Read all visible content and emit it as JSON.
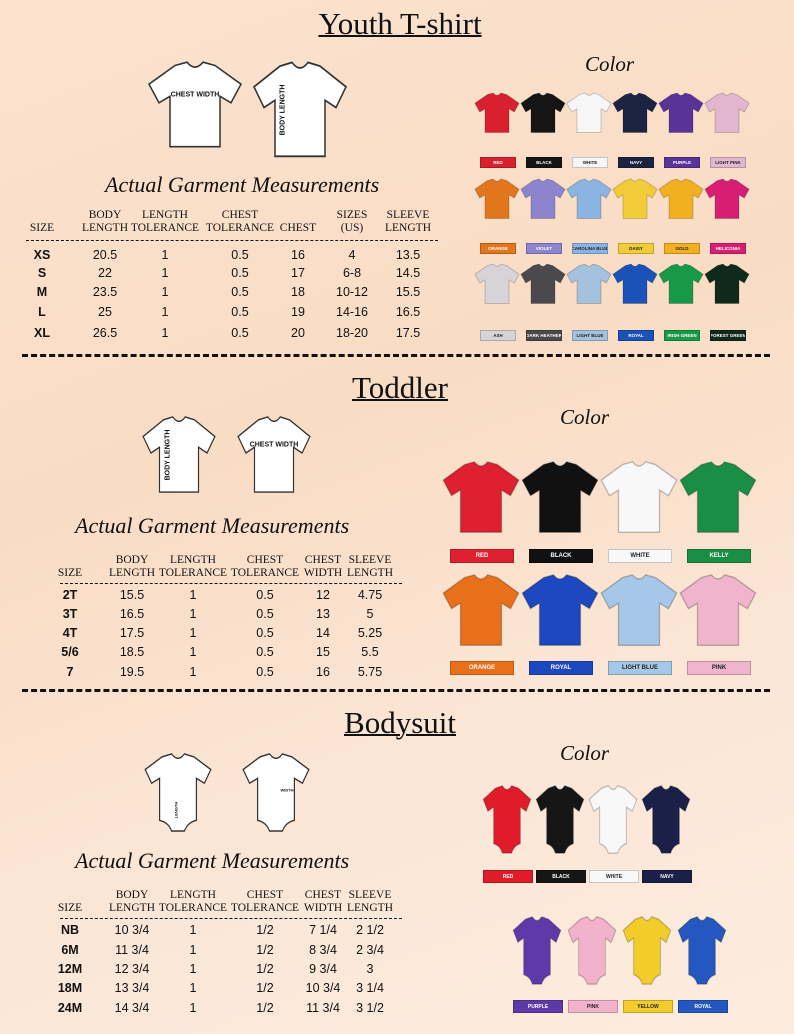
{
  "sections": [
    {
      "title": "Youth T-shirt",
      "diagram_labels": [
        "CHEST WIDTH",
        "BODY LENGTH"
      ],
      "measurements_heading": "Actual Garment Measurements",
      "color_heading": "Color",
      "table": {
        "headers": [
          "SIZE",
          "BODY LENGTH",
          "LENGTH TOLERANCE",
          "CHEST TOLERANCE",
          "CHEST",
          "SIZES (US)",
          "SLEEVE LENGTH"
        ],
        "rows": [
          [
            "XS",
            "20.5",
            "1",
            "0.5",
            "16",
            "4",
            "13.5"
          ],
          [
            "S",
            "22",
            "1",
            "0.5",
            "17",
            "6-8",
            "14.5"
          ],
          [
            "M",
            "23.5",
            "1",
            "0.5",
            "18",
            "10-12",
            "15.5"
          ],
          [
            "L",
            "25",
            "1",
            "0.5",
            "19",
            "14-16",
            "16.5"
          ],
          [
            "XL",
            "26.5",
            "1",
            "0.5",
            "20",
            "18-20",
            "17.5"
          ]
        ]
      },
      "colors": [
        {
          "name": "RED",
          "color": "#d8202e"
        },
        {
          "name": "BLACK",
          "color": "#151515"
        },
        {
          "name": "WHITE",
          "color": "#f6f6f6"
        },
        {
          "name": "NAVY",
          "color": "#1c2340"
        },
        {
          "name": "PURPLE",
          "color": "#5a3398"
        },
        {
          "name": "LIGHT PINK",
          "color": "#e2b6cf"
        },
        {
          "name": "ORANGE",
          "color": "#e2761c"
        },
        {
          "name": "VIOLET",
          "color": "#8c84cc"
        },
        {
          "name": "CAROLINA BLUE",
          "color": "#8cb4e2"
        },
        {
          "name": "DAISY",
          "color": "#f2cc38"
        },
        {
          "name": "GOLD",
          "color": "#f0b020"
        },
        {
          "name": "HELICONIA",
          "color": "#d81e74"
        },
        {
          "name": "ASH",
          "color": "#d6d4d8"
        },
        {
          "name": "DARK HEATHER",
          "color": "#4a4a4e"
        },
        {
          "name": "LIGHT BLUE",
          "color": "#a4c2de"
        },
        {
          "name": "ROYAL",
          "color": "#1a52b8"
        },
        {
          "name": "IRISH GREEN",
          "color": "#179a48"
        },
        {
          "name": "FOREST GREEN",
          "color": "#0f2a1c"
        }
      ]
    },
    {
      "title": "Toddler",
      "diagram_labels": [
        "BODY LENGTH",
        "CHEST WIDTH"
      ],
      "measurements_heading": "Actual Garment Measurements",
      "color_heading": "Color",
      "table": {
        "headers": [
          "SIZE",
          "BODY LENGTH",
          "LENGTH TOLERANCE",
          "CHEST TOLERANCE",
          "CHEST WIDTH",
          "SLEEVE LENGTH"
        ],
        "rows": [
          [
            "2T",
            "15.5",
            "1",
            "0.5",
            "12",
            "4.75"
          ],
          [
            "3T",
            "16.5",
            "1",
            "0.5",
            "13",
            "5"
          ],
          [
            "4T",
            "17.5",
            "1",
            "0.5",
            "14",
            "5.25"
          ],
          [
            "5/6",
            "18.5",
            "1",
            "0.5",
            "15",
            "5.5"
          ],
          [
            "7",
            "19.5",
            "1",
            "0.5",
            "16",
            "5.75"
          ]
        ]
      },
      "colors": [
        {
          "name": "RED",
          "color": "#de2030"
        },
        {
          "name": "BLACK",
          "color": "#111111"
        },
        {
          "name": "WHITE",
          "color": "#f8f8f8"
        },
        {
          "name": "KELLY",
          "color": "#1a8e44"
        },
        {
          "name": "ORANGE",
          "color": "#e8701a"
        },
        {
          "name": "ROYAL",
          "color": "#1e48c0"
        },
        {
          "name": "LIGHT BLUE",
          "color": "#a6c8e8"
        },
        {
          "name": "PINK",
          "color": "#f0b4cc"
        }
      ]
    },
    {
      "title": "Bodysuit",
      "diagram_labels": [
        "LENGTH",
        "WIDTH"
      ],
      "measurements_heading": "Actual Garment Measurements",
      "color_heading": "Color",
      "table": {
        "headers": [
          "SIZE",
          "BODY LENGTH",
          "LENGTH TOLERANCE",
          "CHEST TOLERANCE",
          "CHEST WIDTH",
          "SLEEVE LENGTH"
        ],
        "rows": [
          [
            "NB",
            "10 3/4",
            "1",
            "1/2",
            "7 1/4",
            "2 1/2"
          ],
          [
            "6M",
            "11 3/4",
            "1",
            "1/2",
            "8 3/4",
            "2 3/4"
          ],
          [
            "12M",
            "12 3/4",
            "1",
            "1/2",
            "9 3/4",
            "3"
          ],
          [
            "18M",
            "13 3/4",
            "1",
            "1/2",
            "10 3/4",
            "3 1/4"
          ],
          [
            "24M",
            "14 3/4",
            "1",
            "1/2",
            "11 3/4",
            "3 1/2"
          ]
        ]
      },
      "colors": [
        {
          "name": "RED",
          "color": "#e01c2a"
        },
        {
          "name": "BLACK",
          "color": "#161616"
        },
        {
          "name": "WHITE",
          "color": "#f8f8f8"
        },
        {
          "name": "NAVY",
          "color": "#1a2048"
        },
        {
          "name": "PURPLE",
          "color": "#5e3aa8"
        },
        {
          "name": "PINK",
          "color": "#f2b2cc"
        },
        {
          "name": "YELLOW",
          "color": "#f2cc2a"
        },
        {
          "name": "ROYAL",
          "color": "#2458c0"
        }
      ]
    }
  ]
}
